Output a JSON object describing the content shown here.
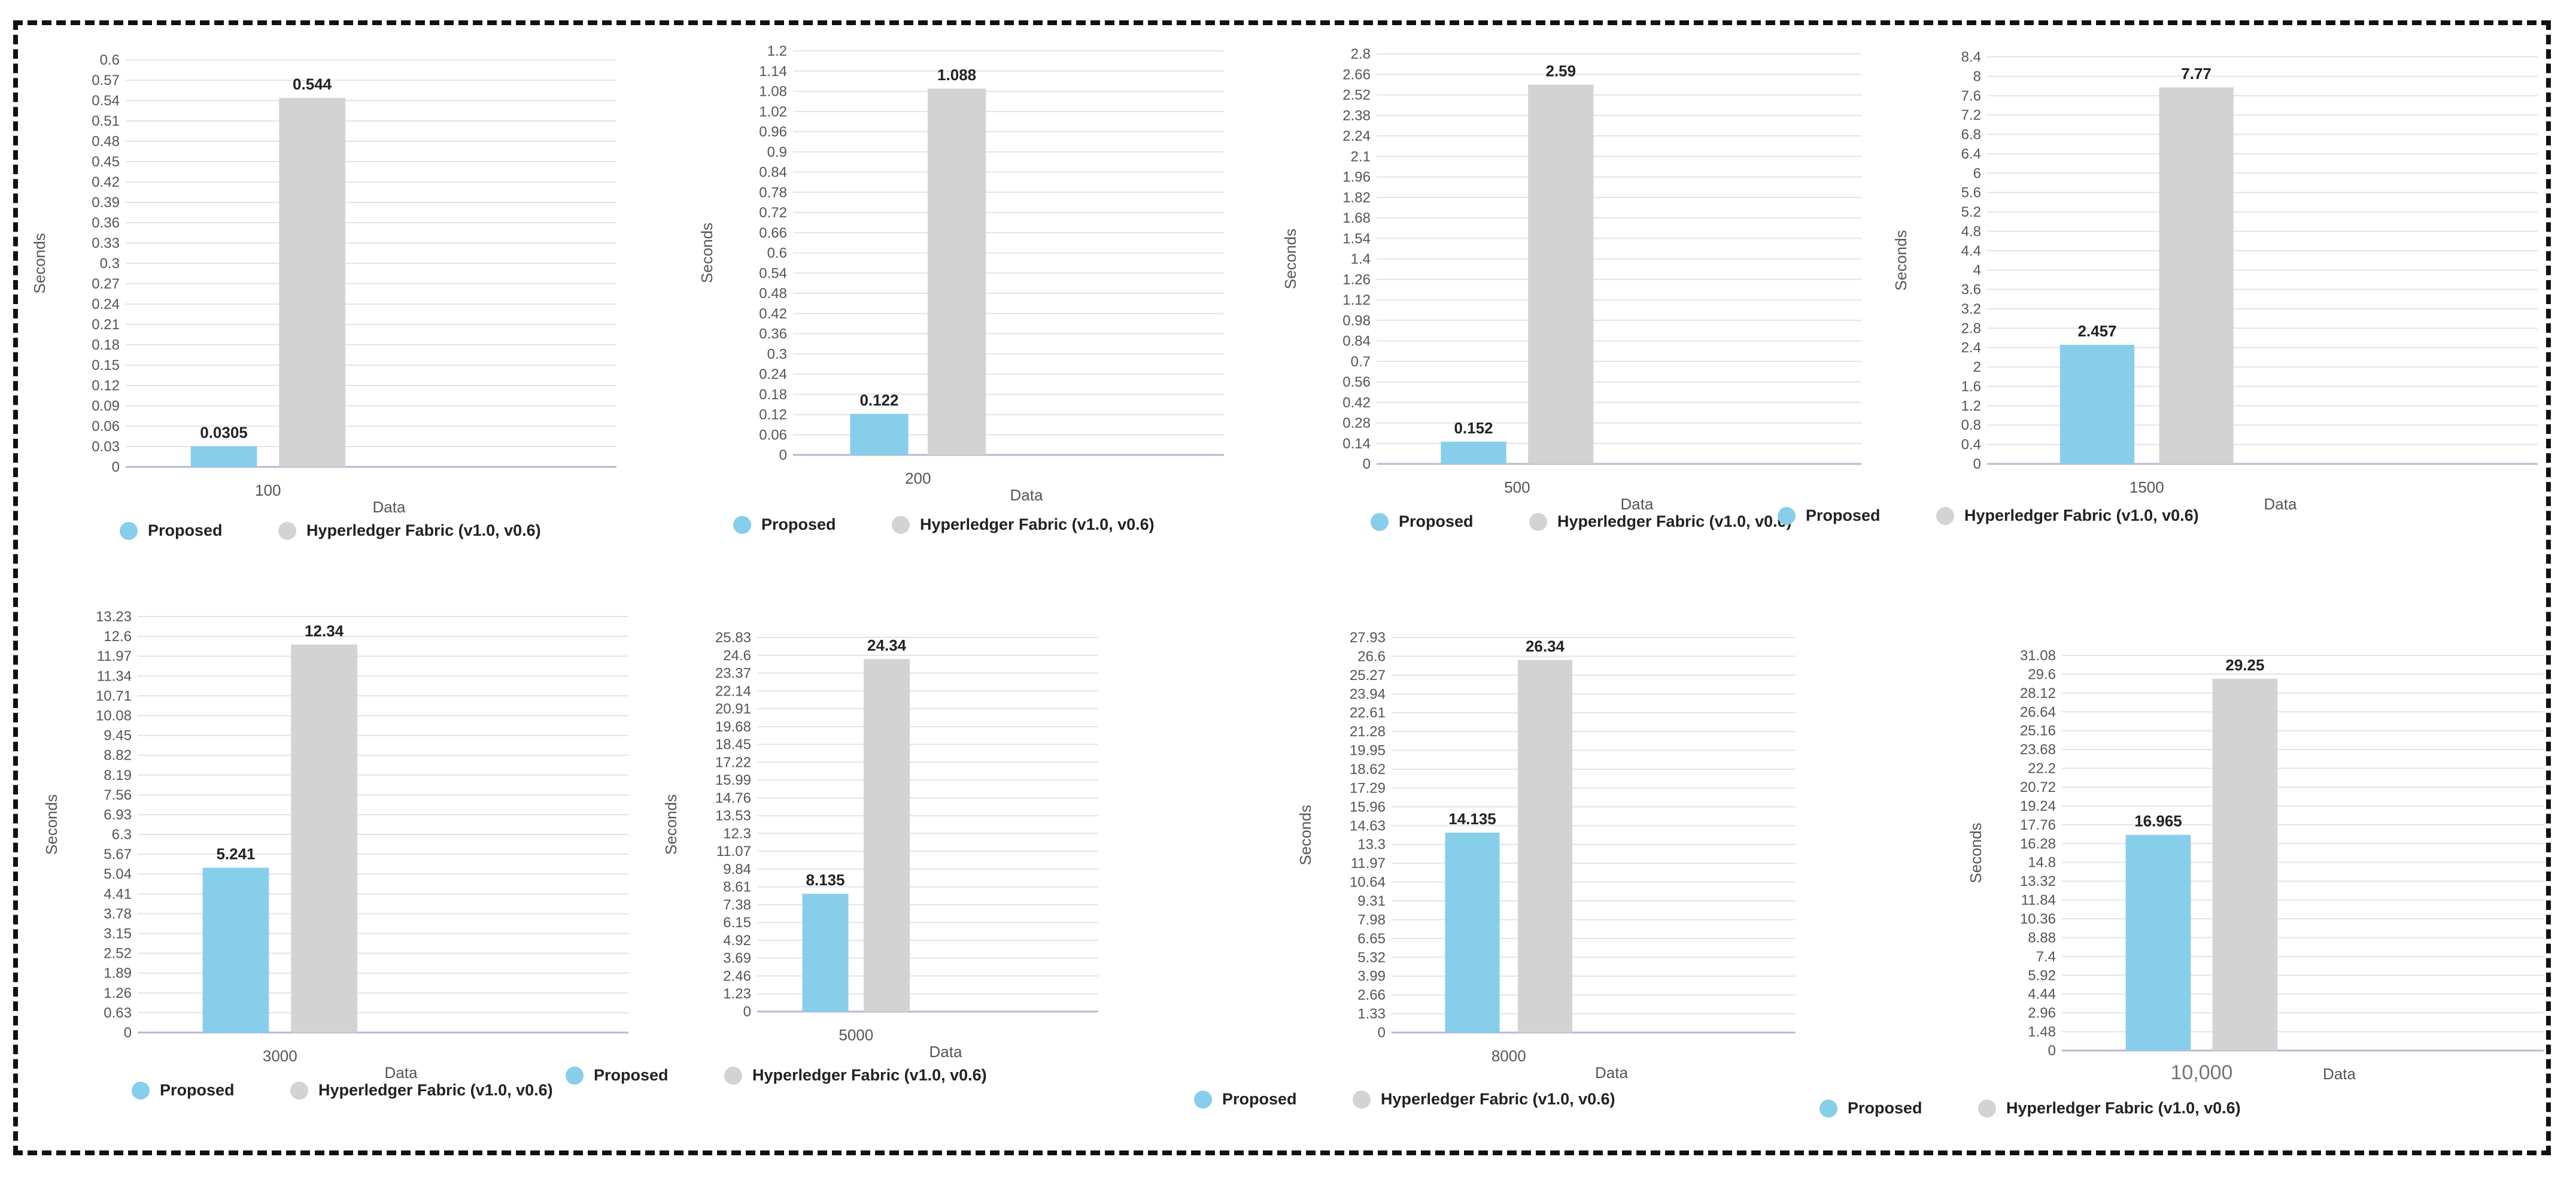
{
  "colors": {
    "proposed": "#87CEEB",
    "hyperledger": "#D3D3D3",
    "grid": "#E3E3EE",
    "axis_text": "#555555"
  },
  "chart_data": [
    {
      "type": "bar",
      "xlabel": "Data",
      "ylabel": "Seconds",
      "categories": [
        "100"
      ],
      "ylim": [
        0,
        0.6
      ],
      "ytick_labels": [
        "0",
        "0.03",
        "0.06",
        "0.09",
        "0.12",
        "0.15",
        "0.18",
        "0.21",
        "0.24",
        "0.27",
        "0.3",
        "0.33",
        "0.36",
        "0.39",
        "0.42",
        "0.45",
        "0.48",
        "0.51",
        "0.54",
        "0.57",
        "0.6"
      ],
      "series": [
        {
          "name": "Proposed",
          "values": [
            0.0305
          ],
          "labels": [
            "0.0305"
          ]
        },
        {
          "name": "Hyperledger Fabric (v1.0, v0.6)",
          "values": [
            0.544
          ],
          "labels": [
            "0.544"
          ]
        }
      ]
    },
    {
      "type": "bar",
      "xlabel": "Data",
      "ylabel": "Seconds",
      "categories": [
        "200"
      ],
      "ylim": [
        0,
        1.2
      ],
      "ytick_labels": [
        "0",
        "0.06",
        "0.12",
        "0.18",
        "0.24",
        "0.3",
        "0.36",
        "0.42",
        "0.48",
        "0.54",
        "0.6",
        "0.66",
        "0.72",
        "0.78",
        "0.84",
        "0.9",
        "0.96",
        "1.02",
        "1.08",
        "1.14",
        "1.2"
      ],
      "series": [
        {
          "name": "Proposed",
          "values": [
            0.122
          ],
          "labels": [
            "0.122"
          ]
        },
        {
          "name": "Hyperledger Fabric (v1.0, v0.6)",
          "values": [
            1.088
          ],
          "labels": [
            "1.088"
          ]
        }
      ]
    },
    {
      "type": "bar",
      "xlabel": "Data",
      "ylabel": "Seconds",
      "categories": [
        "500"
      ],
      "ylim": [
        0,
        2.8
      ],
      "ytick_labels": [
        "0",
        "0.14",
        "0.28",
        "0.42",
        "0.56",
        "0.7",
        "0.84",
        "0.98",
        "1.12",
        "1.26",
        "1.4",
        "1.54",
        "1.68",
        "1.82",
        "1.96",
        "2.1",
        "2.24",
        "2.38",
        "2.52",
        "2.66",
        "2.8"
      ],
      "series": [
        {
          "name": "Proposed",
          "values": [
            0.152
          ],
          "labels": [
            "0.152"
          ]
        },
        {
          "name": "Hyperledger Fabric (v1.0, v0.6)",
          "values": [
            2.59
          ],
          "labels": [
            "2.59"
          ]
        }
      ]
    },
    {
      "type": "bar",
      "xlabel": "Data",
      "ylabel": "Seconds",
      "categories": [
        "1500"
      ],
      "ylim": [
        0,
        8.4
      ],
      "ytick_labels": [
        "0",
        "0.4",
        "0.8",
        "1.2",
        "1.6",
        "2",
        "2.4",
        "2.8",
        "3.2",
        "3.6",
        "4",
        "4.4",
        "4.8",
        "5.2",
        "5.6",
        "6",
        "6.4",
        "6.8",
        "7.2",
        "7.6",
        "8",
        "8.4"
      ],
      "series": [
        {
          "name": "Proposed",
          "values": [
            2.457
          ],
          "labels": [
            "2.457"
          ]
        },
        {
          "name": "Hyperledger Fabric (v1.0, v0.6)",
          "values": [
            7.77
          ],
          "labels": [
            "7.77"
          ]
        }
      ]
    },
    {
      "type": "bar",
      "xlabel": "Data",
      "ylabel": "Seconds",
      "categories": [
        "3000"
      ],
      "ylim": [
        0,
        13.23
      ],
      "ytick_labels": [
        "0",
        "0.63",
        "1.26",
        "1.89",
        "2.52",
        "3.15",
        "3.78",
        "4.41",
        "5.04",
        "5.67",
        "6.3",
        "6.93",
        "7.56",
        "8.19",
        "8.82",
        "9.45",
        "10.08",
        "10.71",
        "11.34",
        "11.97",
        "12.6",
        "13.23"
      ],
      "series": [
        {
          "name": "Proposed",
          "values": [
            5.241
          ],
          "labels": [
            "5.241"
          ]
        },
        {
          "name": "Hyperledger Fabric (v1.0, v0.6)",
          "values": [
            12.34
          ],
          "labels": [
            "12.34"
          ]
        }
      ]
    },
    {
      "type": "bar",
      "xlabel": "Data",
      "ylabel": "Seconds",
      "categories": [
        "5000"
      ],
      "ylim": [
        0,
        25.83
      ],
      "ytick_labels": [
        "0",
        "1.23",
        "2.46",
        "3.69",
        "4.92",
        "6.15",
        "7.38",
        "8.61",
        "9.84",
        "11.07",
        "12.3",
        "13.53",
        "14.76",
        "15.99",
        "17.22",
        "18.45",
        "19.68",
        "20.91",
        "22.14",
        "23.37",
        "24.6",
        "25.83"
      ],
      "series": [
        {
          "name": "Proposed",
          "values": [
            8.135
          ],
          "labels": [
            "8.135"
          ]
        },
        {
          "name": "Hyperledger Fabric (v1.0, v0.6)",
          "values": [
            24.34
          ],
          "labels": [
            "24.34"
          ]
        }
      ]
    },
    {
      "type": "bar",
      "xlabel": "Data",
      "ylabel": "Seconds",
      "categories": [
        "8000"
      ],
      "ylim": [
        0,
        27.93
      ],
      "ytick_labels": [
        "0",
        "1.33",
        "2.66",
        "3.99",
        "5.32",
        "6.65",
        "7.98",
        "9.31",
        "10.64",
        "11.97",
        "13.3",
        "14.63",
        "15.96",
        "17.29",
        "18.62",
        "19.95",
        "21.28",
        "22.61",
        "23.94",
        "25.27",
        "26.6",
        "27.93"
      ],
      "series": [
        {
          "name": "Proposed",
          "values": [
            14.135
          ],
          "labels": [
            "14.135"
          ]
        },
        {
          "name": "Hyperledger Fabric (v1.0, v0.6)",
          "values": [
            26.34
          ],
          "labels": [
            "26.34"
          ]
        }
      ]
    },
    {
      "type": "bar",
      "xlabel": "Data",
      "ylabel": "Seconds",
      "categories": [
        "10,000"
      ],
      "ylim": [
        0,
        31.08
      ],
      "ytick_labels": [
        "0",
        "1.48",
        "2.96",
        "4.44",
        "5.92",
        "7.4",
        "8.88",
        "10.36",
        "11.84",
        "13.32",
        "14.8",
        "16.28",
        "17.76",
        "19.24",
        "20.72",
        "22.2",
        "23.68",
        "25.16",
        "26.64",
        "28.12",
        "29.6",
        "31.08"
      ],
      "series": [
        {
          "name": "Proposed",
          "values": [
            16.965
          ],
          "labels": [
            "16.965"
          ]
        },
        {
          "name": "Hyperledger Fabric (v1.0, v0.6)",
          "values": [
            29.25
          ],
          "labels": [
            "29.25"
          ]
        }
      ]
    }
  ]
}
